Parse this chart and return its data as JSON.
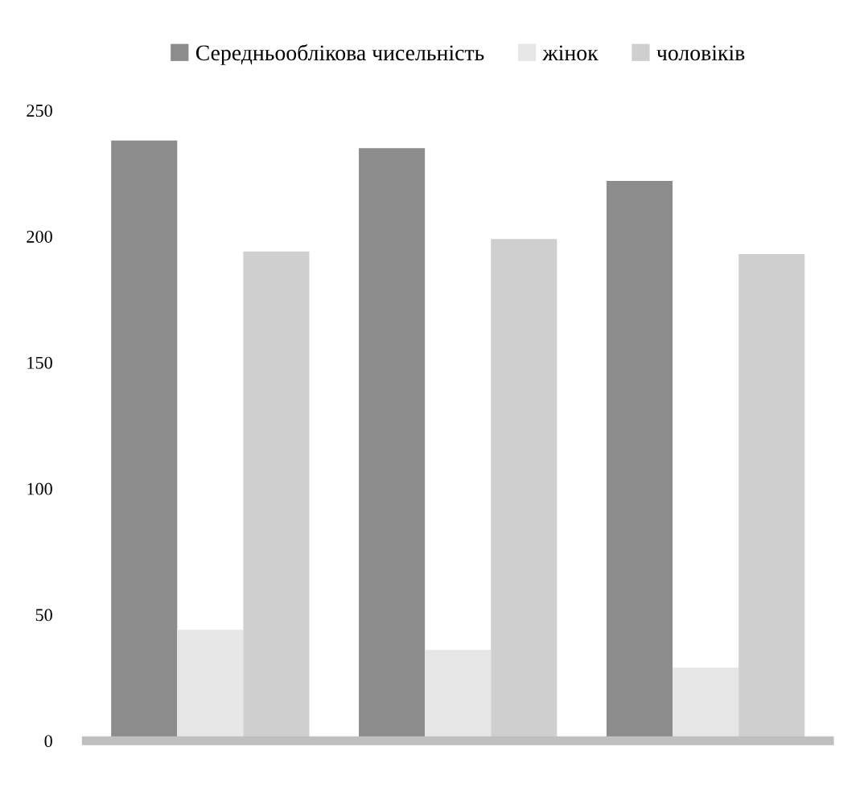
{
  "chart_data": {
    "type": "bar",
    "categories": [
      null,
      null,
      null
    ],
    "series": [
      {
        "name": "Середньооблікова чисельність",
        "color": "#8c8c8c",
        "values": [
          238,
          235,
          222
        ]
      },
      {
        "name": "жінок",
        "color": "#e6e6e6",
        "values": [
          44,
          36,
          29
        ]
      },
      {
        "name": "чоловіків",
        "color": "#cfcfcf",
        "values": [
          194,
          199,
          193
        ]
      }
    ],
    "ylim": [
      0,
      250
    ],
    "yticks": [
      0,
      50,
      100,
      150,
      200,
      250
    ],
    "grid": false,
    "legend": "top"
  }
}
